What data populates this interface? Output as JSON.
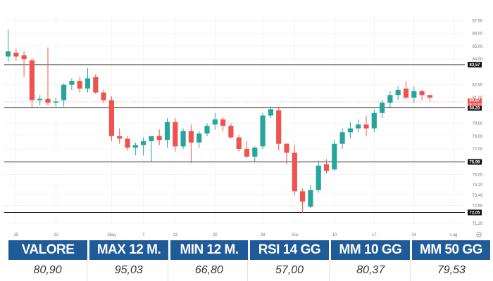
{
  "chart_data": {
    "type": "candlestick",
    "x": [
      "12 Apr",
      "15 Apr",
      "16 Apr",
      "17 Apr",
      "18 Apr",
      "19 Apr",
      "22 Apr",
      "23 Apr",
      "24 Apr",
      "25 Apr",
      "26 Apr",
      "29 Apr",
      "30 Apr",
      "1 Mag",
      "2 Mag",
      "3 Mag",
      "6 Mag",
      "7 Mag",
      "8 Mag",
      "9 Mag",
      "10 Mag",
      "13 Mag",
      "14 Mag",
      "15 Mag",
      "16 Mag",
      "17 Mag",
      "20 Mag",
      "21 Mag",
      "22 Mag",
      "23 Mag",
      "24 Mag",
      "27 Mag",
      "28 Mag",
      "29 Mag",
      "30 Mag",
      "31 Mag",
      "3 Giu",
      "4 Giu",
      "5 Giu",
      "6 Giu",
      "7 Giu",
      "10 Giu",
      "11 Giu",
      "12 Giu",
      "13 Giu",
      "14 Giu",
      "17 Giu",
      "18 Giu",
      "19 Giu",
      "20 Giu",
      "21 Giu",
      "24 Giu",
      "25 Giu",
      "26 Giu"
    ],
    "ohlc": [
      [
        84.2,
        86.3,
        83.8,
        84.6
      ],
      [
        84.5,
        84.8,
        83.9,
        84.2
      ],
      [
        84.3,
        84.6,
        82.6,
        84.0
      ],
      [
        83.9,
        84.1,
        80.2,
        80.8
      ],
      [
        80.8,
        81.2,
        80.4,
        80.9
      ],
      [
        80.9,
        84.9,
        80.4,
        80.6
      ],
      [
        80.6,
        81.0,
        80.3,
        80.7
      ],
      [
        80.8,
        82.1,
        80.3,
        82.0
      ],
      [
        82.0,
        82.5,
        81.6,
        82.3
      ],
      [
        82.3,
        82.6,
        81.4,
        81.7
      ],
      [
        81.7,
        83.3,
        81.4,
        82.5
      ],
      [
        82.6,
        82.8,
        81.3,
        81.4
      ],
      [
        81.4,
        81.6,
        80.6,
        80.8
      ],
      [
        80.8,
        81.1,
        77.6,
        78.0
      ],
      [
        78.0,
        78.6,
        77.4,
        77.8
      ],
      [
        77.8,
        78.0,
        76.9,
        77.1
      ],
      [
        77.1,
        77.5,
        76.5,
        77.3
      ],
      [
        77.3,
        77.9,
        76.5,
        77.6
      ],
      [
        77.6,
        78.0,
        76.0,
        78.0
      ],
      [
        78.0,
        78.5,
        77.3,
        77.7
      ],
      [
        77.7,
        79.4,
        77.1,
        79.1
      ],
      [
        79.1,
        79.4,
        76.8,
        77.2
      ],
      [
        77.2,
        78.6,
        77.0,
        78.4
      ],
      [
        78.4,
        78.9,
        75.9,
        77.5
      ],
      [
        77.5,
        78.4,
        77.1,
        78.2
      ],
      [
        78.2,
        79.0,
        78.0,
        78.8
      ],
      [
        78.9,
        79.8,
        78.5,
        79.3
      ],
      [
        79.3,
        79.5,
        78.4,
        78.8
      ],
      [
        78.8,
        79.0,
        77.8,
        77.9
      ],
      [
        77.9,
        78.1,
        76.8,
        77.0
      ],
      [
        77.0,
        77.6,
        76.3,
        76.4
      ],
      [
        76.4,
        77.2,
        76.0,
        77.1
      ],
      [
        77.2,
        79.8,
        77.0,
        79.6
      ],
      [
        79.6,
        80.3,
        79.4,
        80.1
      ],
      [
        80.0,
        80.3,
        76.9,
        77.4
      ],
      [
        77.4,
        77.5,
        75.8,
        76.7
      ],
      [
        76.7,
        77.3,
        73.4,
        73.7
      ],
      [
        73.7,
        73.9,
        72.0,
        72.9
      ],
      [
        72.5,
        74.2,
        72.4,
        73.8
      ],
      [
        73.8,
        76.1,
        73.6,
        75.7
      ],
      [
        75.8,
        76.2,
        75.1,
        75.3
      ],
      [
        75.4,
        77.7,
        75.3,
        77.4
      ],
      [
        77.4,
        78.6,
        77.0,
        78.3
      ],
      [
        78.3,
        79.1,
        77.8,
        78.6
      ],
      [
        78.6,
        79.3,
        78.3,
        78.9
      ],
      [
        78.9,
        79.6,
        78.0,
        78.6
      ],
      [
        78.6,
        80.1,
        78.3,
        79.8
      ],
      [
        79.8,
        80.8,
        79.4,
        80.6
      ],
      [
        80.6,
        81.5,
        80.2,
        81.2
      ],
      [
        81.2,
        81.9,
        80.8,
        81.6
      ],
      [
        81.7,
        82.3,
        80.9,
        81.0
      ],
      [
        81.0,
        81.9,
        80.6,
        81.5
      ],
      [
        81.5,
        81.6,
        80.8,
        81.2
      ],
      [
        81.2,
        81.2,
        80.7,
        81.0
      ]
    ],
    "levels": [
      83.57,
      80.2,
      75.99,
      72.05
    ],
    "level_labels": [
      "83,57",
      "80,20",
      "75,99",
      "72,05"
    ],
    "current_price_label": "80,67",
    "countdown_label": "06:33:38",
    "ylim": [
      71.2,
      87.4
    ],
    "y_ticks": [
      "87,00",
      "86,00",
      "85,00",
      "84,00",
      "82,00",
      "81,00",
      "79,00",
      "78,00",
      "77,00",
      "76,00",
      "75,00",
      "74,20",
      "73,40",
      "72,60",
      "71,20"
    ],
    "x_ticks": [
      {
        "label": "15",
        "x": "15 Apr"
      },
      {
        "label": "22",
        "x": "22 Apr"
      },
      {
        "label": "Mag",
        "x": "1 Mag"
      },
      {
        "label": "7",
        "x": "7 Mag"
      },
      {
        "label": "13",
        "x": "13 Mag"
      },
      {
        "label": "20",
        "x": "20 Mag"
      },
      {
        "label": "28",
        "x": "28 Mag"
      },
      {
        "label": "Giu",
        "x": "3 Giu"
      },
      {
        "label": "10",
        "x": "10 Giu"
      },
      {
        "label": "17",
        "x": "17 Giu"
      },
      {
        "label": "24",
        "x": "24 Giu"
      },
      {
        "label": "Lug",
        "x": "1 Lug"
      }
    ],
    "colors": {
      "up": "#26a69a",
      "down": "#ef5350",
      "level_line": "#222222",
      "current_line": "#f2a4a4",
      "grid": "#eeeeee"
    }
  },
  "stats": {
    "headers": [
      "VALORE",
      "MAX 12 M.",
      "MIN 12 M.",
      "RSI 14 GG",
      "MM 10 GG",
      "MM 50 GG"
    ],
    "values": [
      "80,90",
      "95,03",
      "66,80",
      "57,00",
      "80,37",
      "79,53"
    ],
    "header_color": "#1f5a99"
  }
}
